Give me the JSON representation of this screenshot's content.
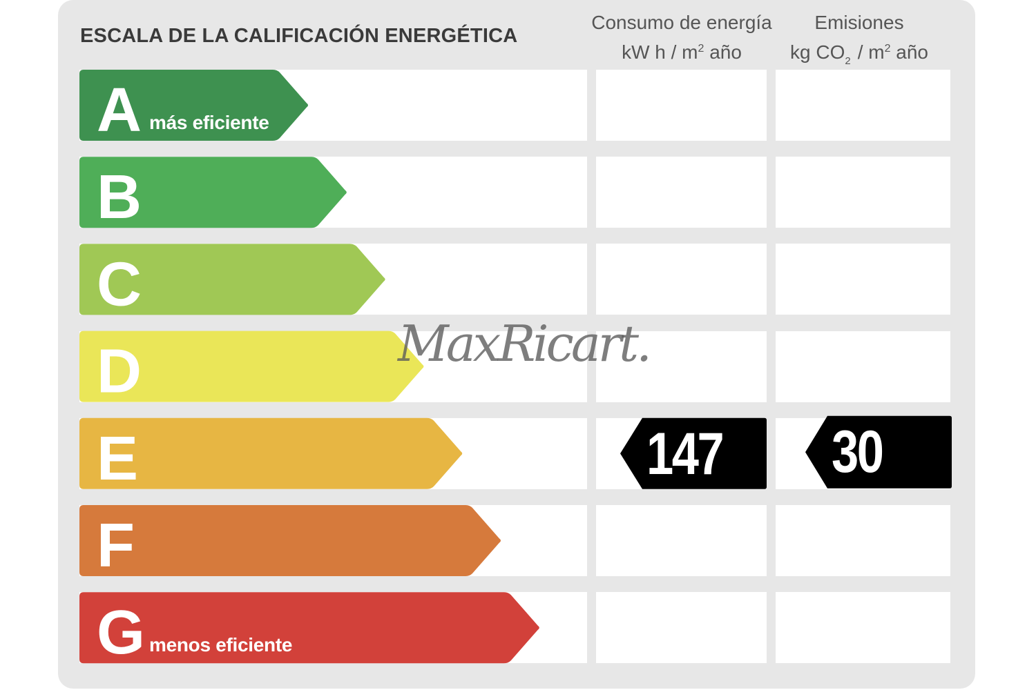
{
  "header": {
    "title": "ESCALA DE LA CALIFICACIÓN ENERGÉTICA",
    "consumo_line1": "Consumo de energía",
    "consumo_line2_a": "kW h  / m",
    "consumo_line2_sup": "2",
    "consumo_line2_b": " año",
    "emisiones_line1": "Emisiones",
    "emisiones_line2_a": "kg CO",
    "emisiones_line2_sub": "2",
    "emisiones_line2_b": "/ m",
    "emisiones_line2_sup": "2",
    "emisiones_line2_c": " año"
  },
  "chart_data": {
    "type": "bar",
    "title": "ESCALA DE LA CALIFICACIÓN ENERGÉTICA",
    "categories": [
      "A",
      "B",
      "C",
      "D",
      "E",
      "F",
      "G"
    ],
    "category_notes": {
      "A": "más eficiente",
      "G": "menos eficiente"
    },
    "colors": [
      "#3e9150",
      "#4fae58",
      "#a0c855",
      "#eae658",
      "#e7b643",
      "#d67a3c",
      "#d2413a"
    ],
    "values": [
      1,
      2,
      3,
      4,
      5,
      6,
      7
    ],
    "columns": [
      "Consumo de energía kW h / m² año",
      "Emisiones kg CO₂ / m² año"
    ],
    "rating": {
      "consumo": {
        "class": "E",
        "value": 147
      },
      "emisiones": {
        "class": "E",
        "value": 30
      }
    }
  },
  "badges": {
    "consumo_value": "147",
    "emisiones_value": "30",
    "color": "#000000"
  },
  "watermark": "MaxRicart."
}
